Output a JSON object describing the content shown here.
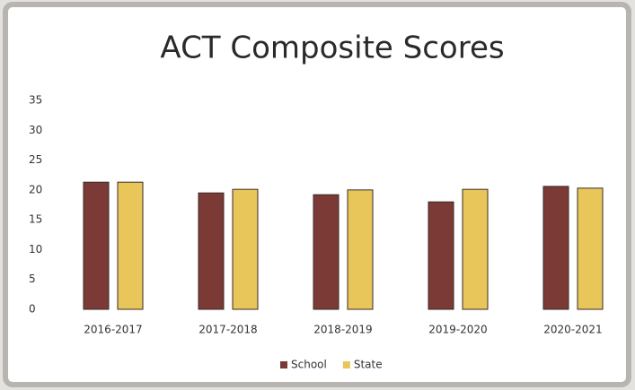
{
  "chart_data": {
    "type": "bar",
    "title": "ACT Composite Scores",
    "categories": [
      "2016-2017",
      "2017-2018",
      "2018-2019",
      "2019-2020",
      "2020-2021"
    ],
    "series": [
      {
        "name": "School",
        "color": "#7b3a35",
        "values": [
          21.3,
          19.5,
          19.2,
          18.0,
          20.6
        ]
      },
      {
        "name": "State",
        "color": "#e8c65a",
        "values": [
          21.3,
          20.1,
          20.0,
          20.1,
          20.3
        ]
      }
    ],
    "ylim": [
      0,
      35
    ],
    "yticks": [
      0,
      5,
      10,
      15,
      20,
      25,
      30,
      35
    ],
    "grid": false,
    "legend": "bottom"
  }
}
